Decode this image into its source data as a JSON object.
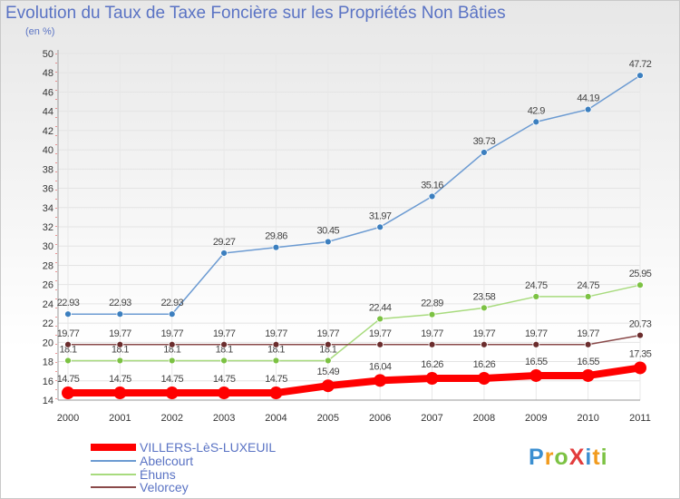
{
  "title": "Evolution du Taux de Taxe Foncière sur les Propriétés Non Bâties",
  "subtitle": "(en %)",
  "logo": {
    "text": "ProXiti",
    "colors": [
      "#3b8fd1",
      "#f29b1d",
      "#7cc243",
      "#e23c3c",
      "#3b8fd1",
      "#f29b1d",
      "#7cc243"
    ]
  },
  "chart_data": {
    "type": "line",
    "x": [
      "2000",
      "2001",
      "2002",
      "2003",
      "2004",
      "2005",
      "2006",
      "2007",
      "2008",
      "2009",
      "2010",
      "2011"
    ],
    "ylim": [
      14,
      50
    ],
    "yticks": [
      "14",
      "16",
      "18",
      "20",
      "22",
      "24",
      "26",
      "28",
      "30",
      "32",
      "34",
      "36",
      "38",
      "40",
      "42",
      "44",
      "46",
      "48",
      "50"
    ],
    "grid": true,
    "legend_position": "bottom-left",
    "series": [
      {
        "name": "Abelcourt",
        "color": "#6c9bd2",
        "marker": "#3c7fbf",
        "values": [
          22.93,
          22.93,
          22.93,
          29.27,
          29.86,
          30.45,
          31.97,
          35.16,
          39.73,
          42.9,
          44.19,
          47.72
        ],
        "labels": [
          "22.93",
          "22.93",
          "22.93",
          "29.27",
          "29.86",
          "30.45",
          "31.97",
          "35.16",
          "39.73",
          "42.9",
          "44.19",
          "47.72"
        ]
      },
      {
        "name": "Éhuns",
        "color": "#a8db7e",
        "marker": "#7cc243",
        "values": [
          18.1,
          18.1,
          18.1,
          18.1,
          18.1,
          18.1,
          22.44,
          22.89,
          23.58,
          24.75,
          24.75,
          25.95
        ],
        "labels": [
          "18.1",
          "18.1",
          "18.1",
          "18.1",
          "18.1",
          "18.1",
          "22.44",
          "22.89",
          "23.58",
          "24.75",
          "24.75",
          "25.95"
        ]
      },
      {
        "name": "Velorcey",
        "color": "#8a4a4a",
        "marker": "#6b2d2d",
        "values": [
          19.77,
          19.77,
          19.77,
          19.77,
          19.77,
          19.77,
          19.77,
          19.77,
          19.77,
          19.77,
          19.77,
          20.73
        ],
        "labels": [
          "19.77",
          "19.77",
          "19.77",
          "19.77",
          "19.77",
          "19.77",
          "19.77",
          "19.77",
          "19.77",
          "19.77",
          "19.77",
          "20.73"
        ]
      },
      {
        "name": "VILLERS-LèS-LUXEUIL",
        "color": "#ff0000",
        "marker": "#ff0000",
        "values": [
          14.75,
          14.75,
          14.75,
          14.75,
          14.75,
          15.49,
          16.04,
          16.26,
          16.26,
          16.55,
          16.55,
          17.35
        ],
        "labels": [
          "14.75",
          "14.75",
          "14.75",
          "14.75",
          "14.75",
          "15.49",
          "16.04",
          "16.26",
          "16.26",
          "16.55",
          "16.55",
          "17.35"
        ]
      }
    ],
    "legend_order": [
      "VILLERS-LèS-LUXEUIL",
      "Abelcourt",
      "Éhuns",
      "Velorcey"
    ]
  }
}
